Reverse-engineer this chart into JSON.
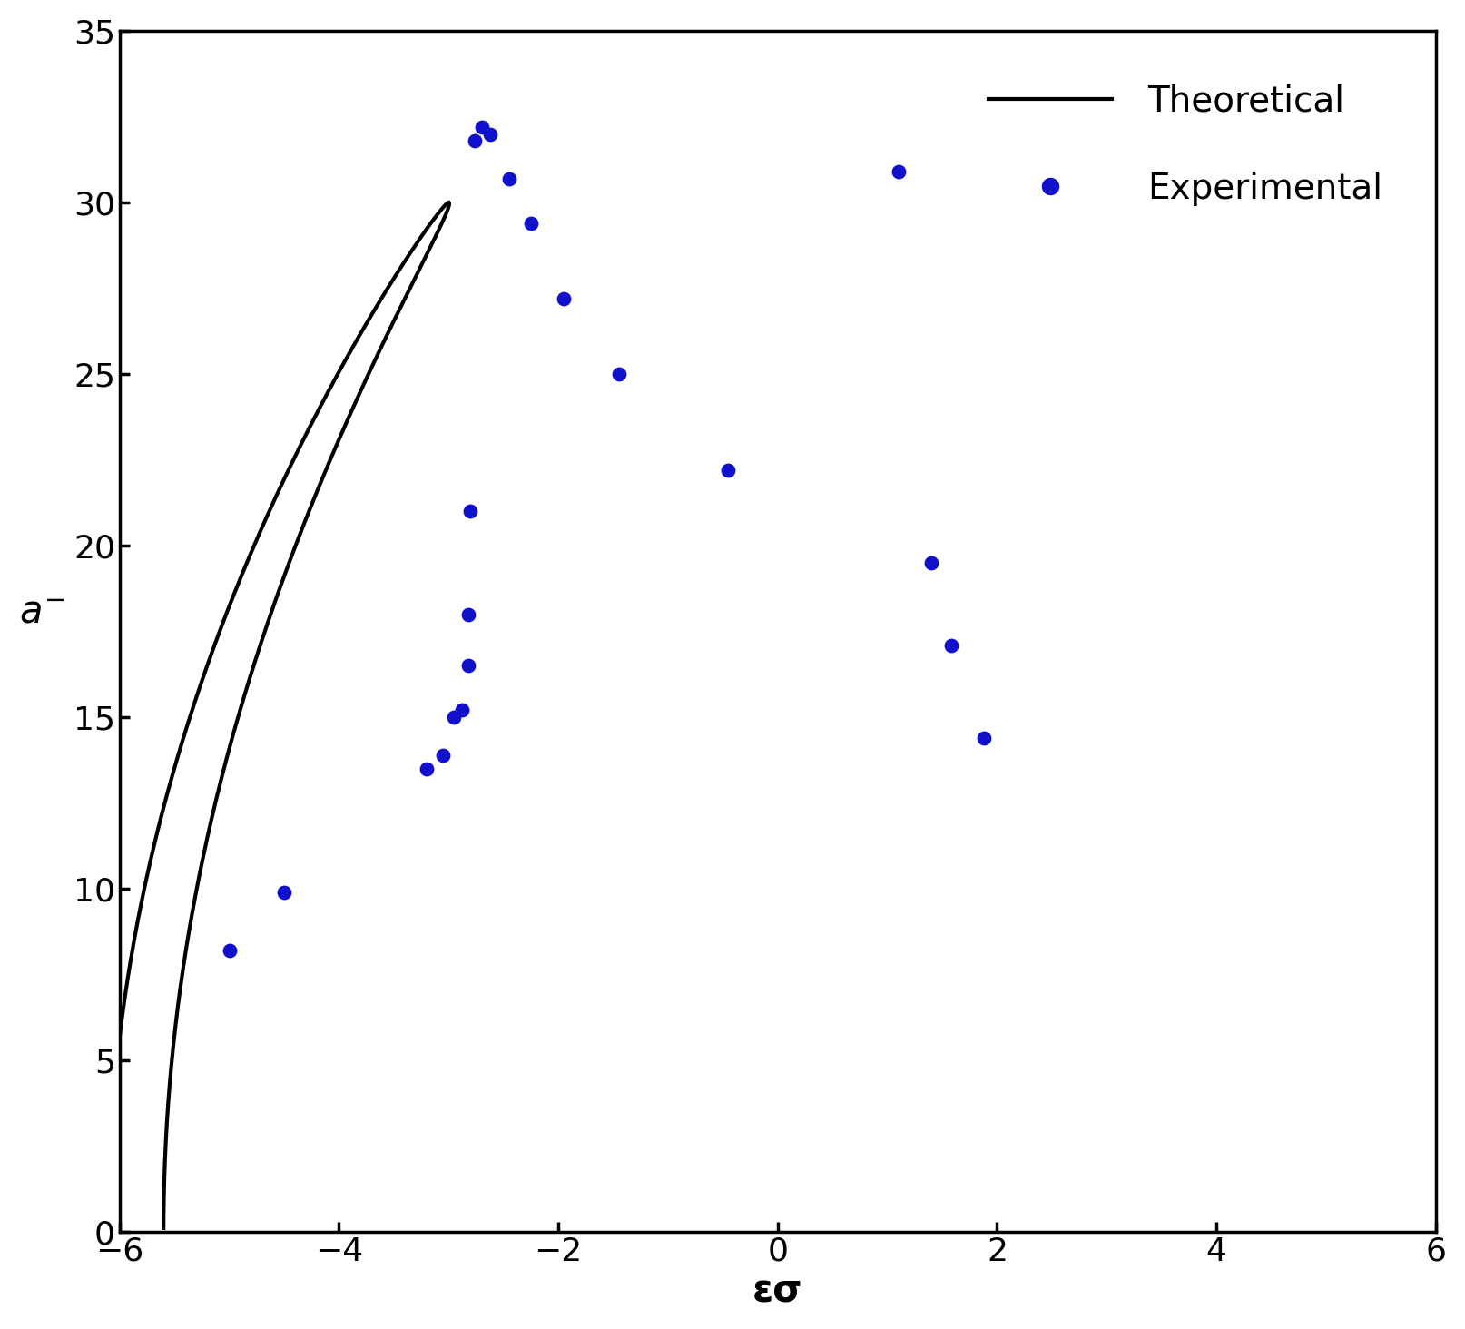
{
  "xlabel": "εσ",
  "ylabel": "$a^{-}$",
  "xlim": [
    -6,
    6
  ],
  "ylim": [
    0,
    35
  ],
  "xticks": [
    -6,
    -4,
    -2,
    0,
    2,
    4,
    6
  ],
  "yticks": [
    0,
    5,
    10,
    15,
    20,
    25,
    30,
    35
  ],
  "line_color": "#000000",
  "line_width": 3.0,
  "dot_color": "#1111cc",
  "dot_size": 130,
  "experimental_x": [
    -5.0,
    -4.5,
    -3.2,
    -3.05,
    -2.95,
    -2.88,
    -2.82,
    -2.82,
    -2.8,
    -2.76,
    -2.7,
    -2.62,
    -2.45,
    -2.25,
    -1.95,
    -1.45,
    -0.45,
    1.1,
    1.4,
    1.58,
    1.88
  ],
  "experimental_y": [
    8.2,
    9.9,
    13.5,
    13.9,
    15.0,
    15.2,
    16.5,
    18.0,
    21.0,
    31.8,
    32.2,
    32.0,
    30.7,
    29.4,
    27.2,
    25.0,
    22.2,
    30.9,
    19.5,
    17.1,
    14.4
  ],
  "legend_line_label": "Theoretical",
  "legend_dot_label": "Experimental",
  "fontsize_labels": 30,
  "fontsize_ticks": 26,
  "fontsize_legend": 28,
  "duffing_F": 5.7,
  "duffing_zeta": 0.095,
  "duffing_alpha": 0.095
}
